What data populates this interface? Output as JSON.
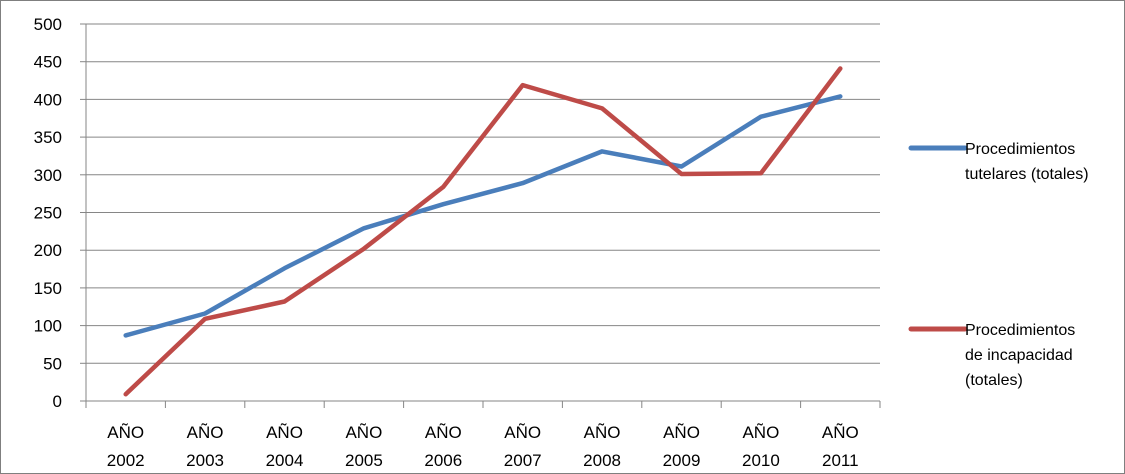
{
  "chart_data": {
    "type": "line",
    "title": "",
    "xlabel": "",
    "ylabel": "",
    "categories": [
      [
        "AÑO",
        "2002"
      ],
      [
        "AÑO",
        "2003"
      ],
      [
        "AÑO",
        "2004"
      ],
      [
        "AÑO",
        "2005"
      ],
      [
        "AÑO",
        "2006"
      ],
      [
        "AÑO",
        "2007"
      ],
      [
        "AÑO",
        "2008"
      ],
      [
        "AÑO",
        "2009"
      ],
      [
        "AÑO",
        "2010"
      ],
      [
        "AÑO",
        "2011"
      ]
    ],
    "ylim": [
      0,
      500
    ],
    "yticks": [
      "0",
      "50",
      "100",
      "150",
      "200",
      "250",
      "300",
      "350",
      "400",
      "450",
      "500"
    ],
    "grid": "horizontal",
    "legend_position": "right",
    "series": [
      {
        "name_lines": [
          "Procedimientos",
          "tutelares (totales)"
        ],
        "color": "#4A7EBB",
        "values": [
          87,
          116,
          176,
          229,
          261,
          289,
          331,
          311,
          377,
          404
        ]
      },
      {
        "name_lines": [
          "Procedimientos",
          "de incapacidad",
          "(totales)"
        ],
        "color": "#BE4B48",
        "values": [
          9,
          109,
          132,
          202,
          284,
          419,
          388,
          301,
          302,
          441
        ]
      }
    ]
  }
}
